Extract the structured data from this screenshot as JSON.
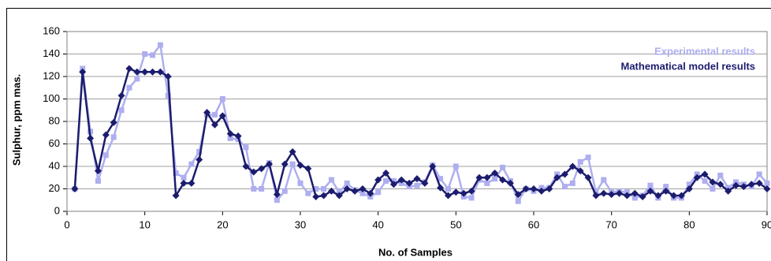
{
  "chart_data": {
    "type": "line",
    "x_label": "No. of Samples",
    "y_label": "Sulphur, ppm mas.",
    "x": [
      1,
      2,
      3,
      4,
      5,
      6,
      7,
      8,
      9,
      10,
      11,
      12,
      13,
      14,
      15,
      16,
      17,
      18,
      19,
      20,
      21,
      22,
      23,
      24,
      25,
      26,
      27,
      28,
      29,
      30,
      31,
      32,
      33,
      34,
      35,
      36,
      37,
      38,
      39,
      40,
      41,
      42,
      43,
      44,
      45,
      46,
      47,
      48,
      49,
      50,
      51,
      52,
      53,
      54,
      55,
      56,
      57,
      58,
      59,
      60,
      61,
      62,
      63,
      64,
      65,
      66,
      67,
      68,
      69,
      70,
      71,
      72,
      73,
      74,
      75,
      76,
      77,
      78,
      79,
      80,
      81,
      82,
      83,
      84,
      85,
      86,
      87,
      88,
      89,
      90
    ],
    "series": [
      {
        "name": "Experimental results",
        "color": "#aeaef0",
        "marker": "square",
        "values": [
          20,
          127,
          71,
          27,
          50,
          66,
          90,
          110,
          118,
          140,
          139,
          148,
          103,
          34,
          30,
          42,
          53,
          86,
          86,
          100,
          65,
          64,
          57,
          20,
          20,
          43,
          10,
          18,
          42,
          25,
          16,
          20,
          20,
          28,
          17,
          25,
          19,
          16,
          13,
          17,
          27,
          27,
          25,
          22,
          23,
          26,
          41,
          29,
          20,
          40,
          13,
          12,
          28,
          25,
          29,
          39,
          27,
          9,
          20,
          18,
          21,
          21,
          33,
          22,
          25,
          44,
          48,
          17,
          28,
          17,
          18,
          17,
          12,
          14,
          23,
          12,
          22,
          12,
          12,
          24,
          33,
          27,
          20,
          32,
          21,
          26,
          24,
          22,
          33,
          25
        ]
      },
      {
        "name": "Mathematical model results",
        "color": "#1c1c6e",
        "marker": "diamond",
        "values": [
          20,
          124,
          65,
          36,
          68,
          79,
          103,
          127,
          124,
          124,
          124,
          124,
          120,
          14,
          25,
          25,
          46,
          88,
          77,
          85,
          69,
          67,
          40,
          35,
          38,
          42,
          15,
          42,
          53,
          41,
          38,
          13,
          14,
          18,
          14,
          20,
          18,
          20,
          16,
          28,
          34,
          24,
          28,
          25,
          29,
          25,
          40,
          21,
          14,
          17,
          16,
          18,
          30,
          30,
          34,
          28,
          25,
          15,
          20,
          20,
          18,
          20,
          30,
          33,
          40,
          36,
          30,
          14,
          16,
          15,
          16,
          14,
          16,
          13,
          18,
          14,
          18,
          14,
          14,
          20,
          30,
          33,
          26,
          24,
          18,
          23,
          22,
          24,
          25,
          20
        ]
      }
    ],
    "xlim": [
      0,
      90
    ],
    "xticks": [
      0,
      10,
      20,
      30,
      40,
      50,
      60,
      70,
      80,
      90
    ],
    "ylim": [
      0,
      160
    ],
    "yticks": [
      0,
      20,
      40,
      60,
      80,
      100,
      120,
      140,
      160
    ],
    "grid": true,
    "legend": "upper right"
  }
}
